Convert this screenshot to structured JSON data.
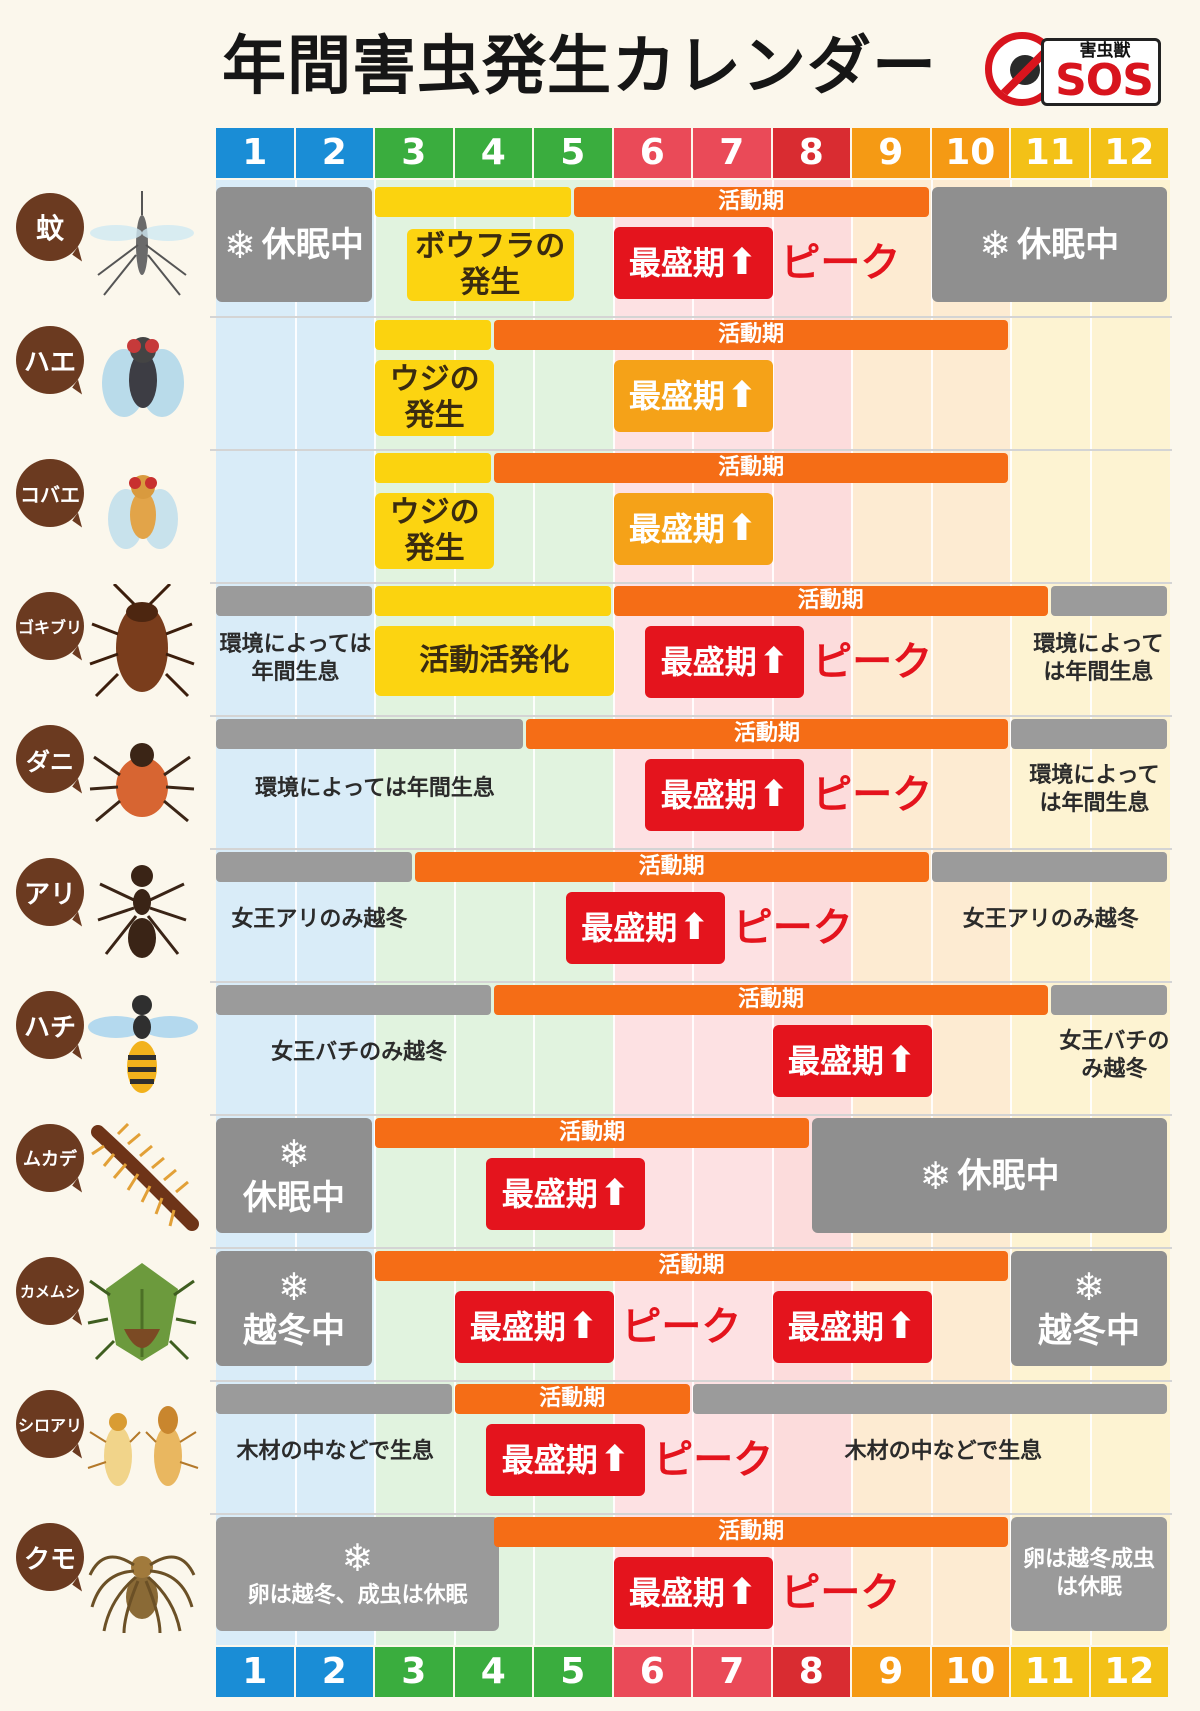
{
  "title": "年間害虫発生カレンダー",
  "logo": {
    "small_text": "害虫獣",
    "main_text": "SOS"
  },
  "months": [
    "1",
    "2",
    "3",
    "4",
    "5",
    "6",
    "7",
    "8",
    "9",
    "10",
    "11",
    "12"
  ],
  "month_colors": [
    "#1a8dd6",
    "#1a8dd6",
    "#3aad3e",
    "#3aad3e",
    "#3aad3e",
    "#ea4a58",
    "#ea4a58",
    "#d92c31",
    "#f59a14",
    "#f59a14",
    "#f3c117",
    "#f3c117"
  ],
  "labels": {
    "active": "活動期",
    "peak_box": "最盛期",
    "peak_text": "ピーク",
    "dormant": "休眠中",
    "overwinter": "越冬中",
    "larva_mosquito": "ボウフラの発生",
    "larva_fly": "ウジの発生",
    "active_rise": "活動活発化",
    "year_round": "環境によっては年間生息",
    "queen_ant": "女王アリのみ越冬",
    "queen_bee_a": "女王バチのみ越冬",
    "queen_bee_b": "女王バチのみ越冬",
    "in_wood": "木材の中などで生息",
    "spider_left": "卵は越冬、成虫は休眠",
    "spider_right": "卵は越冬成虫は休眠"
  },
  "insects": [
    {
      "name": "蚊",
      "icon": "mosquito-icon"
    },
    {
      "name": "ハエ",
      "icon": "fly-icon"
    },
    {
      "name": "コバエ",
      "icon": "fruit-fly-icon"
    },
    {
      "name": "ゴキブリ",
      "icon": "cockroach-icon"
    },
    {
      "name": "ダニ",
      "icon": "tick-icon"
    },
    {
      "name": "アリ",
      "icon": "ant-icon"
    },
    {
      "name": "ハチ",
      "icon": "wasp-icon"
    },
    {
      "name": "ムカデ",
      "icon": "centipede-icon"
    },
    {
      "name": "カメムシ",
      "icon": "stinkbug-icon"
    },
    {
      "name": "シロアリ",
      "icon": "termite-icon"
    },
    {
      "name": "クモ",
      "icon": "spider-icon"
    }
  ],
  "colors": {
    "active": "#f56d16",
    "larva": "#fcd411",
    "dormant": "#8f8f8f",
    "peak": "#e4141d",
    "peak_fly": "#f5a218",
    "badge": "#6b3a20"
  }
}
